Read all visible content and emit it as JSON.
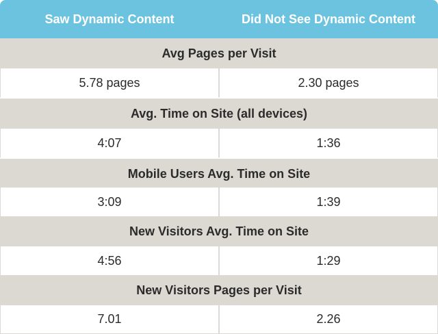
{
  "header": {
    "col1": "Saw Dynamic Content",
    "col2": "Did Not See Dynamic Content"
  },
  "sections": [
    {
      "title": "Avg Pages per Visit",
      "saw": "5.78 pages",
      "not_saw": "2.30 pages"
    },
    {
      "title": "Avg. Time on Site (all devices)",
      "saw": "4:07",
      "not_saw": "1:36"
    },
    {
      "title": "Mobile Users Avg. Time on Site",
      "saw": "3:09",
      "not_saw": "1:39"
    },
    {
      "title": "New Visitors Avg. Time on Site",
      "saw": "4:56",
      "not_saw": "1:29"
    },
    {
      "title": "New Visitors Pages per Visit",
      "saw": "7.01",
      "not_saw": "2.26"
    }
  ],
  "colors": {
    "header_bg": "#6cc3df",
    "section_bg": "#dbd9d2",
    "text": "#2b2b2b"
  }
}
